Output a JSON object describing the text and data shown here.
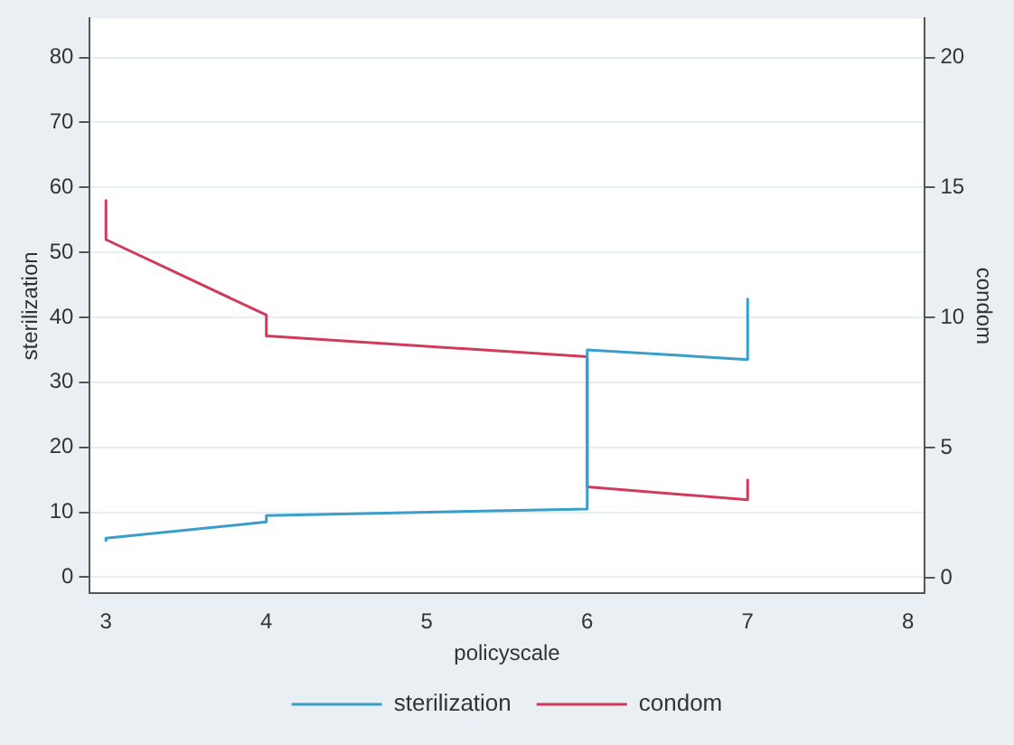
{
  "chart_data": {
    "type": "line",
    "xlabel": "policyscale",
    "ylabel": "sterilization",
    "y2label": "condom",
    "xlim": [
      2.9,
      8.1
    ],
    "xticks": [
      3,
      4,
      5,
      6,
      7,
      8
    ],
    "ylim": [
      -2.5,
      86
    ],
    "yticks": [
      0,
      10,
      20,
      30,
      40,
      50,
      60,
      70,
      80
    ],
    "y2lim": [
      -0.6,
      21.5
    ],
    "y2ticks": [
      0,
      5,
      10,
      15,
      20
    ],
    "grid": "y",
    "legend": "bottom",
    "marker": "none",
    "line_style": "solid",
    "series": [
      {
        "name": "sterilization",
        "color": "#3a9ec9",
        "x": [
          3,
          3,
          4,
          4,
          6,
          6,
          7,
          7
        ],
        "values": [
          5.5,
          6,
          8.5,
          9.5,
          10.5,
          35,
          33.5,
          43
        ]
      },
      {
        "name": "condom",
        "color": "#d13a5c",
        "axis": "y2",
        "x": [
          3,
          3,
          4,
          4,
          6,
          6,
          7,
          7
        ],
        "values": [
          14.5,
          13,
          10.1,
          9.3,
          8.5,
          3.5,
          3,
          3.8
        ]
      }
    ]
  }
}
